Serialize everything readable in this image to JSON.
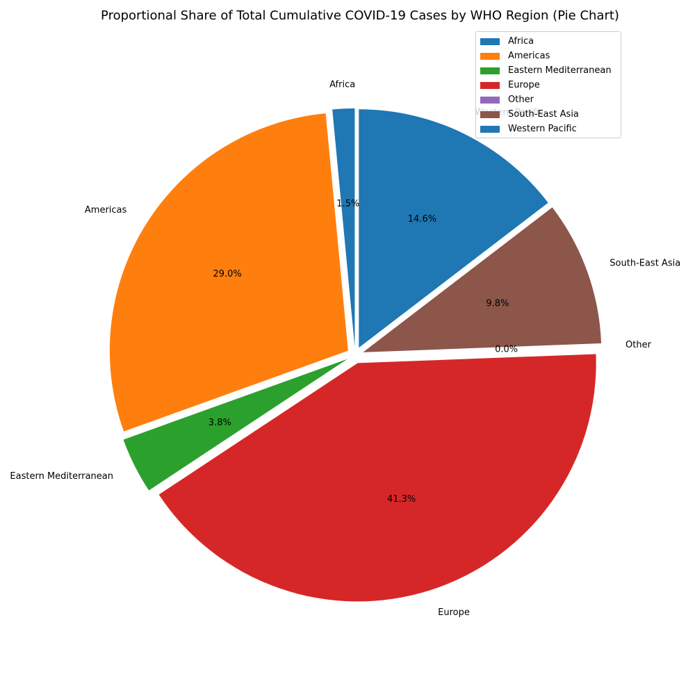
{
  "chart_data": {
    "type": "pie",
    "title": "Proportional Share of Total Cumulative COVID-19 Cases by WHO Region (Pie Chart)",
    "labels": [
      "Africa",
      "Americas",
      "Eastern Mediterranean",
      "Europe",
      "Other",
      "South-East Asia",
      "Western Pacific"
    ],
    "values": [
      1.5,
      29.0,
      3.8,
      41.3,
      0.0,
      9.8,
      14.6
    ],
    "value_labels": [
      "1.5%",
      "29.0%",
      "3.8%",
      "41.3%",
      "0.0%",
      "9.8%",
      "14.6%"
    ],
    "colors": [
      "#1f77b4",
      "#ff7f0e",
      "#2ca02c",
      "#d62728",
      "#9467bd",
      "#8c564b",
      "#1f77b4"
    ],
    "start_angle_deg": 90,
    "direction": "counterclockwise",
    "exploded": true,
    "legend": {
      "position": "top-right",
      "entries": [
        "Africa",
        "Americas",
        "Eastern Mediterranean",
        "Europe",
        "Other",
        "South-East Asia",
        "Western Pacific"
      ]
    }
  }
}
